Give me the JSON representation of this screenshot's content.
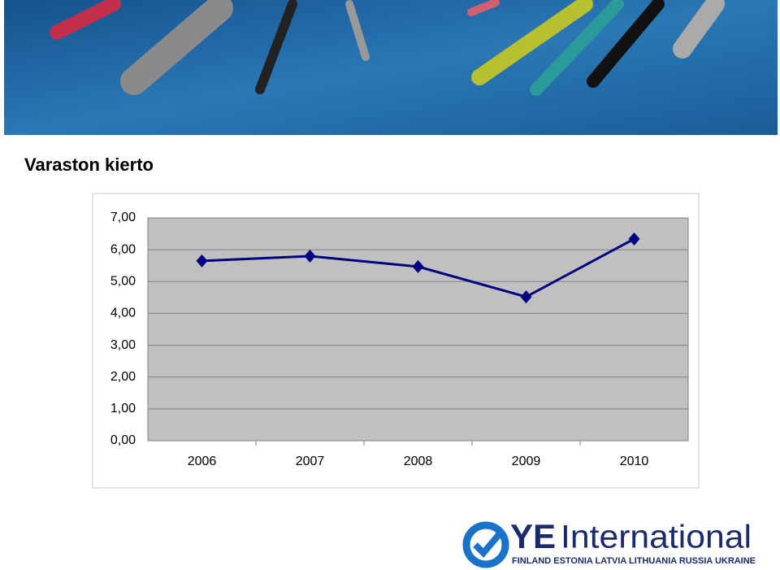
{
  "chart_data": {
    "type": "line",
    "title": "Varaston kierto",
    "categories": [
      "2006",
      "2007",
      "2008",
      "2009",
      "2010"
    ],
    "values": [
      5.65,
      5.8,
      5.47,
      4.52,
      6.34
    ],
    "color": "#000080",
    "ylim": [
      0,
      7
    ],
    "yticks": [
      {
        "value": 0,
        "label": "0,00"
      },
      {
        "value": 1,
        "label": "1,00"
      },
      {
        "value": 2,
        "label": "2,00"
      },
      {
        "value": 3,
        "label": "3,00"
      },
      {
        "value": 4,
        "label": "4,00"
      },
      {
        "value": 5,
        "label": "5,00"
      },
      {
        "value": 6,
        "label": "6,00"
      },
      {
        "value": 7,
        "label": "7,00"
      }
    ],
    "grid": true
  },
  "logo": {
    "brand": "YE",
    "name": "International",
    "countries": "FINLAND ESTONIA LATVIA LITHUANIA RUSSIA UKRAINE"
  }
}
